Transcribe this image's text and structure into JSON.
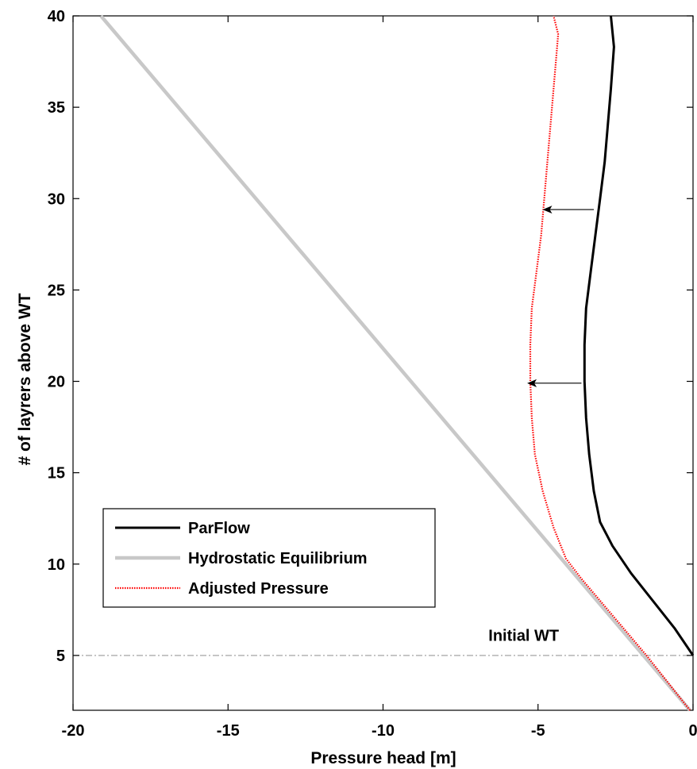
{
  "chart_data": {
    "type": "line",
    "title": "",
    "xlabel": "Pressure head [m]",
    "ylabel": "# of layrers above WT",
    "xlim": [
      -20,
      0
    ],
    "ylim": [
      2,
      40
    ],
    "xticks": [
      -20,
      -15,
      -10,
      -5,
      0
    ],
    "yticks": [
      5,
      10,
      15,
      20,
      25,
      30,
      35,
      40
    ],
    "grid": false,
    "legend_position": "lower-left",
    "series": [
      {
        "name": "ParFlow",
        "color": "#000000",
        "style": "solid",
        "points": [
          [
            0,
            5
          ],
          [
            -0.6,
            6.5
          ],
          [
            -1.3,
            8
          ],
          [
            -2.0,
            9.5
          ],
          [
            -2.6,
            11
          ],
          [
            -3.0,
            12.3
          ],
          [
            -3.2,
            14
          ],
          [
            -3.35,
            16
          ],
          [
            -3.45,
            18
          ],
          [
            -3.5,
            20
          ],
          [
            -3.5,
            22
          ],
          [
            -3.45,
            24
          ],
          [
            -3.3,
            26
          ],
          [
            -3.15,
            28
          ],
          [
            -3.0,
            30
          ],
          [
            -2.85,
            32
          ],
          [
            -2.75,
            34
          ],
          [
            -2.65,
            36
          ],
          [
            -2.55,
            38.3
          ],
          [
            -2.65,
            40
          ]
        ]
      },
      {
        "name": "Hydrostatic Equilibrium",
        "color": "#c8c8c8",
        "style": "solid",
        "points": [
          [
            -0.1,
            2
          ],
          [
            -19.1,
            40
          ]
        ]
      },
      {
        "name": "Adjusted Pressure",
        "color": "#ff0000",
        "style": "dotted",
        "points": [
          [
            -0.1,
            2
          ],
          [
            -1.5,
            5
          ],
          [
            -2.5,
            7
          ],
          [
            -3.6,
            9.2
          ],
          [
            -4.1,
            10.3
          ],
          [
            -4.5,
            12
          ],
          [
            -4.85,
            14
          ],
          [
            -5.1,
            16
          ],
          [
            -5.2,
            18
          ],
          [
            -5.25,
            20
          ],
          [
            -5.25,
            22
          ],
          [
            -5.2,
            24
          ],
          [
            -5.05,
            26
          ],
          [
            -4.9,
            28
          ],
          [
            -4.8,
            30
          ],
          [
            -4.7,
            32
          ],
          [
            -4.6,
            34
          ],
          [
            -4.5,
            36
          ],
          [
            -4.4,
            38
          ],
          [
            -4.35,
            39
          ],
          [
            -4.5,
            40
          ]
        ]
      }
    ],
    "reference_line": {
      "y": 5,
      "color": "#999999",
      "style": "dash-dot"
    },
    "annotations": [
      {
        "text": "Initial WT",
        "x": -6.6,
        "y": 5.8
      },
      {
        "type": "arrow",
        "from": [
          -3.2,
          29.4
        ],
        "to": [
          -4.8,
          29.4
        ]
      },
      {
        "type": "arrow",
        "from": [
          -3.6,
          19.9
        ],
        "to": [
          -5.3,
          19.9
        ]
      }
    ]
  }
}
